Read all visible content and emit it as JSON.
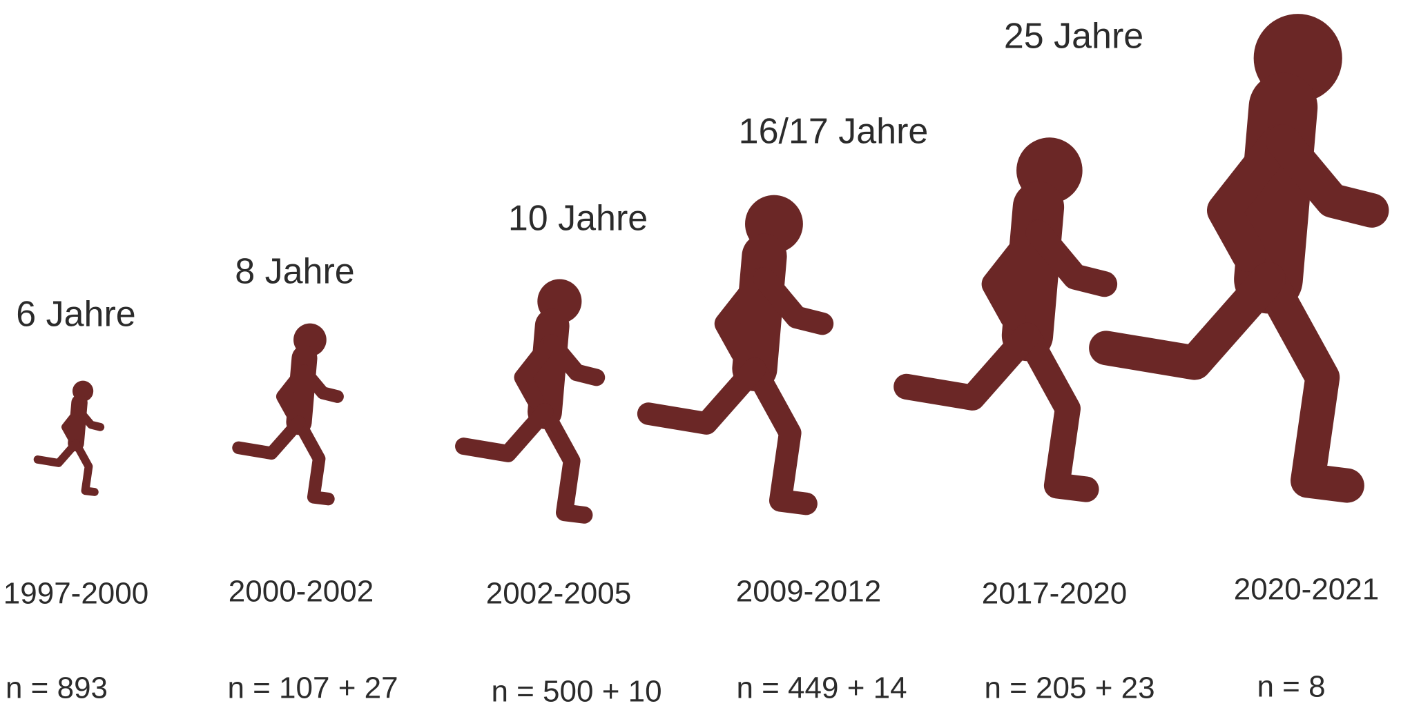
{
  "stages": [
    {
      "age": "6 Jahre",
      "years": "1997-2000",
      "n": "n = 893"
    },
    {
      "age": "8 Jahre",
      "years": "2000-2002",
      "n": "n = 107 + 27"
    },
    {
      "age": "10 Jahre",
      "years": "2002-2005",
      "n": "n = 500 + 10"
    },
    {
      "age": "16/17 Jahre",
      "years": "2009-2012",
      "n": "n = 449 + 14"
    },
    {
      "age": "25 Jahre",
      "years": "2017-2020",
      "n": "n = 205 + 23"
    },
    {
      "years": "2020-2021",
      "n": "n = 8"
    }
  ]
}
